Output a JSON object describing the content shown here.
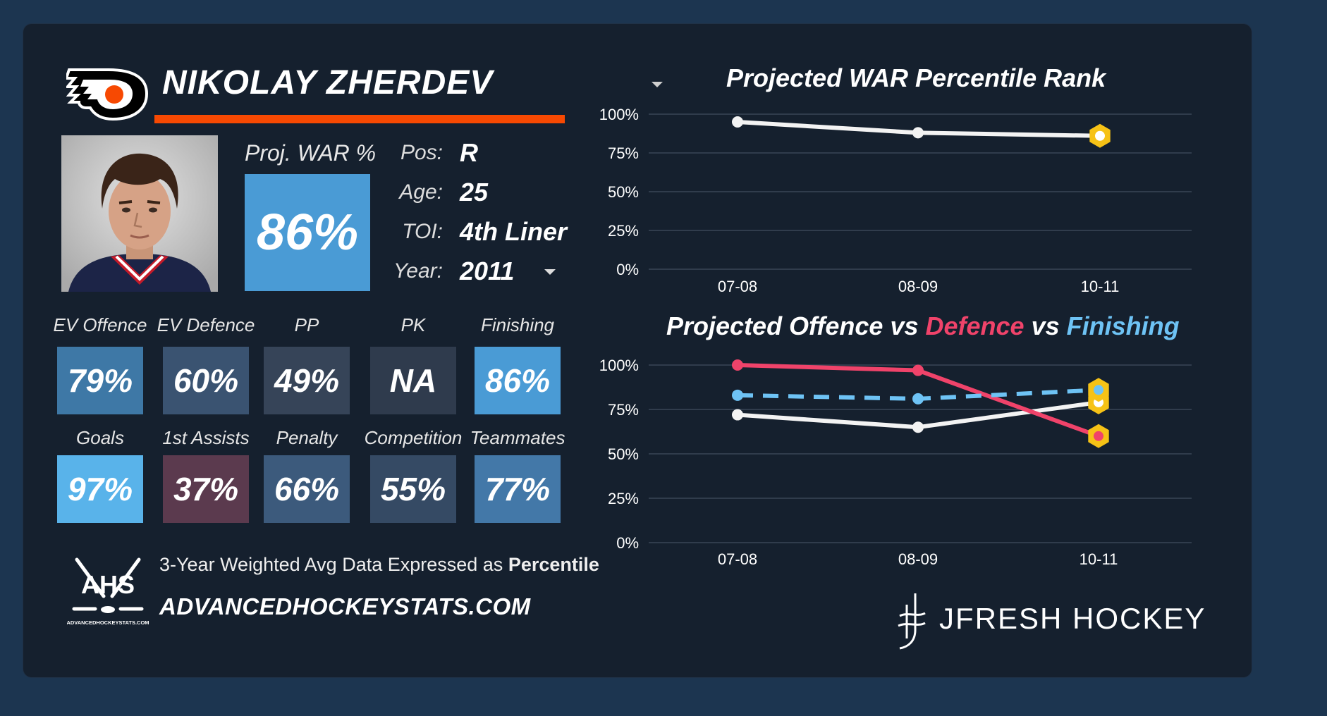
{
  "player": {
    "name": "NIKOLAY ZHERDEV",
    "proj_war_label": "Proj. WAR %",
    "proj_war_value": "86%",
    "info": [
      {
        "label": "Pos:",
        "value": "R"
      },
      {
        "label": "Age:",
        "value": "25"
      },
      {
        "label": "TOI:",
        "value": "4th Liner"
      },
      {
        "label": "Year:",
        "value": "2011"
      }
    ]
  },
  "stats_row1": [
    {
      "label": "EV Offence",
      "value": "79%",
      "color": "#3e78a6"
    },
    {
      "label": "EV Defence",
      "value": "60%",
      "color": "#3a5371"
    },
    {
      "label": "PP",
      "value": "49%",
      "color": "#364458"
    },
    {
      "label": "PK",
      "value": "NA",
      "color": "#2f3b4d"
    },
    {
      "label": "Finishing",
      "value": "86%",
      "color": "#4a9bd5"
    }
  ],
  "stats_row2": [
    {
      "label": "Goals",
      "value": "97%",
      "color": "#59b3ea"
    },
    {
      "label": "1st Assists",
      "value": "37%",
      "color": "#5b3a4e"
    },
    {
      "label": "Penalty",
      "value": "66%",
      "color": "#3c5a7c"
    },
    {
      "label": "Competition",
      "value": "55%",
      "color": "#354a64"
    },
    {
      "label": "Teammates",
      "value": "77%",
      "color": "#4378a8"
    }
  ],
  "footer": {
    "note_prefix": "3-Year Weighted Avg Data Expressed as ",
    "note_bold": "Percentile",
    "site": "ADVANCEDHOCKEYSTATS.COM",
    "ahs_logo_text": "AHS",
    "ahs_logo_small": "ADVANCEDHOCKEYSTATS.COM",
    "brand": "JFRESH HOCKEY"
  },
  "chart_titles": {
    "war": "Projected WAR Percentile Rank",
    "ovd_part1": "Projected Offence vs ",
    "ovd_part2": "Defence",
    "ovd_part3": " vs ",
    "ovd_part4": "Finishing"
  },
  "colors": {
    "offence": "#f3f3f3",
    "defence": "#f0436a",
    "finishing": "#6ec3f5",
    "marker": "#f6c216",
    "flyers_orange": "#f74902"
  },
  "chart_data": [
    {
      "type": "line",
      "title": "Projected WAR Percentile Rank",
      "categories": [
        "07-08",
        "08-09",
        "10-11"
      ],
      "yticks": [
        "0%",
        "25%",
        "50%",
        "75%",
        "100%"
      ],
      "ylim": [
        0,
        100
      ],
      "series": [
        {
          "values": [
            95,
            88,
            86
          ]
        }
      ]
    },
    {
      "type": "line",
      "title": "Projected Offence vs Defence vs Finishing",
      "categories": [
        "07-08",
        "08-09",
        "10-11"
      ],
      "yticks": [
        "0%",
        "25%",
        "50%",
        "75%",
        "100%"
      ],
      "ylim": [
        0,
        100
      ],
      "series": [
        {
          "name": "Offence",
          "values": [
            72,
            65,
            79
          ]
        },
        {
          "name": "Defence",
          "values": [
            100,
            97,
            60
          ]
        },
        {
          "name": "Finishing",
          "values": [
            83,
            81,
            86
          ]
        }
      ]
    }
  ]
}
